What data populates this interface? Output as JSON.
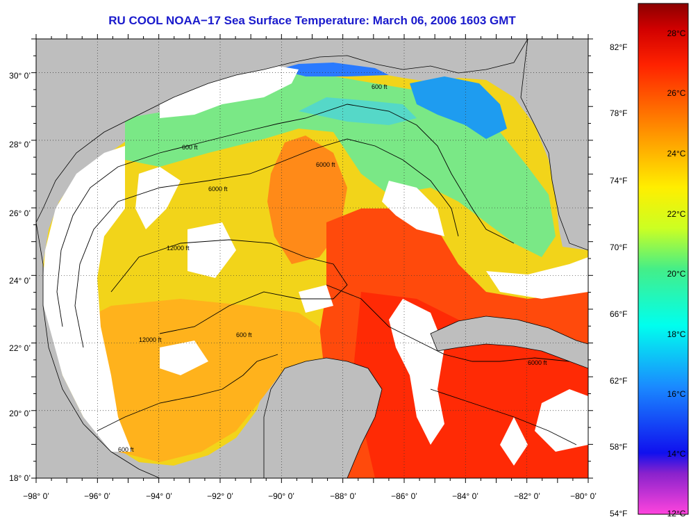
{
  "title": "RU COOL  NOAA−17  Sea Surface Temperature:  March 06, 2006 1603 GMT",
  "map": {
    "lon_range": [
      -98,
      -80
    ],
    "lat_range": [
      18,
      31
    ],
    "lon_ticks": [
      "−98° 0’",
      "−96° 0’",
      "−94° 0’",
      "−92° 0’",
      "−90° 0’",
      "−88° 0’",
      "−86° 0’",
      "−84° 0’",
      "−82° 0’",
      "−80° 0’"
    ],
    "lat_ticks": [
      "18° 0’",
      "20° 0’",
      "22° 0’",
      "24° 0’",
      "26° 0’",
      "28° 0’",
      "30° 0’"
    ],
    "grid": "dotted",
    "land_color": "#bebebe",
    "cloud_color": "#ffffff",
    "contour_labels": [
      "600 ft",
      "6000 ft",
      "12000 ft"
    ]
  },
  "colorbar": {
    "celsius_labels": [
      "28°C",
      "26°C",
      "24°C",
      "22°C",
      "20°C",
      "18°C",
      "16°C",
      "14°C",
      "12°C"
    ],
    "fahrenheit_labels": [
      "82°F",
      "78°F",
      "74°F",
      "70°F",
      "66°F",
      "62°F",
      "58°F",
      "54°F"
    ],
    "celsius_range": [
      12,
      29
    ],
    "colors_low_to_high": [
      "#ff44dd",
      "#8a22cc",
      "#1010ee",
      "#1a8aff",
      "#00ffee",
      "#44ee88",
      "#ccff22",
      "#ffee00",
      "#ffaa00",
      "#ff6600",
      "#ff2200",
      "#d10000",
      "#8b0000"
    ]
  }
}
